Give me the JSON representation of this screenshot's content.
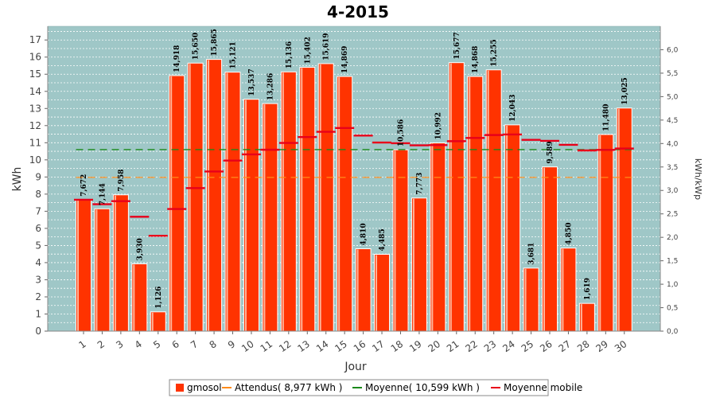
{
  "chart_data": {
    "type": "bar",
    "title": "4-2015",
    "xlabel": "Jour",
    "ylabel": "kWh",
    "y2label": "kWh/kWp",
    "ylim": [
      0,
      17.8
    ],
    "y2lim": [
      0,
      6.5
    ],
    "yticks": [
      "0",
      "1",
      "2",
      "3",
      "4",
      "5",
      "6",
      "7",
      "8",
      "9",
      "10",
      "11",
      "12",
      "13",
      "14",
      "15",
      "16",
      "17"
    ],
    "y2ticks": [
      "0,0",
      "0,5",
      "1,0",
      "1,5",
      "2,0",
      "2,5",
      "3,0",
      "3,5",
      "4,0",
      "4,5",
      "5,0",
      "5,5",
      "6,0"
    ],
    "categories": [
      "1",
      "2",
      "3",
      "4",
      "5",
      "6",
      "7",
      "8",
      "9",
      "10",
      "11",
      "12",
      "13",
      "14",
      "15",
      "16",
      "17",
      "18",
      "19",
      "20",
      "21",
      "22",
      "23",
      "24",
      "25",
      "26",
      "27",
      "28",
      "29",
      "30"
    ],
    "series": [
      {
        "name": "gmosol",
        "color": "#ff3300",
        "values": [
          7.672,
          7.144,
          7.958,
          3.93,
          1.126,
          14.918,
          15.65,
          15.865,
          15.121,
          13.537,
          13.286,
          15.136,
          15.402,
          15.619,
          14.869,
          4.81,
          4.485,
          10.586,
          7.773,
          10.992,
          15.677,
          14.868,
          15.255,
          12.043,
          3.681,
          9.589,
          4.85,
          1.619,
          11.48,
          13.025
        ],
        "labels": [
          "7,672",
          "7,144",
          "7,958",
          "3,930",
          "1,126",
          "14,918",
          "15,650",
          "15,865",
          "15,121",
          "13,537",
          "13,286",
          "15,136",
          "15,402",
          "15,619",
          "14,869",
          "4,810",
          "4,485",
          "10,586",
          "7,773",
          "10,992",
          "15,677",
          "14,868",
          "15,255",
          "12,043",
          "3,681",
          "9,589",
          "4,850",
          "1,619",
          "11,480",
          "13,025"
        ]
      },
      {
        "name": "Moyenne mobile",
        "color": "#e8001a",
        "values": [
          7.67,
          7.41,
          7.59,
          6.68,
          5.57,
          7.13,
          8.35,
          9.32,
          9.96,
          10.32,
          10.59,
          10.99,
          11.33,
          11.64,
          11.86,
          11.42,
          11.01,
          10.97,
          10.85,
          10.86,
          11.09,
          11.28,
          11.45,
          11.48,
          11.17,
          11.11,
          10.88,
          10.55,
          10.58,
          10.66
        ]
      }
    ],
    "reference_lines": [
      {
        "name": "Attendus( 8,977 kWh )",
        "color": "#ff8c1a",
        "value": 8.977
      },
      {
        "name": "Moyenne( 10,599 kWh )",
        "color": "#1a8a1a",
        "value": 10.599
      }
    ],
    "legend": {
      "placement": "bottom",
      "items": [
        {
          "label": "gmosol",
          "color": "#ff3300",
          "kind": "box"
        },
        {
          "label": "Attendus( 8,977 kWh )",
          "color": "#ff8c1a",
          "kind": "line"
        },
        {
          "label": "Moyenne( 10,599 kWh )",
          "color": "#1a8a1a",
          "kind": "line"
        },
        {
          "label": "Moyenne mobile",
          "color": "#e8001a",
          "kind": "line"
        }
      ]
    },
    "plot_background": "#9fc7c7",
    "grid": true
  }
}
